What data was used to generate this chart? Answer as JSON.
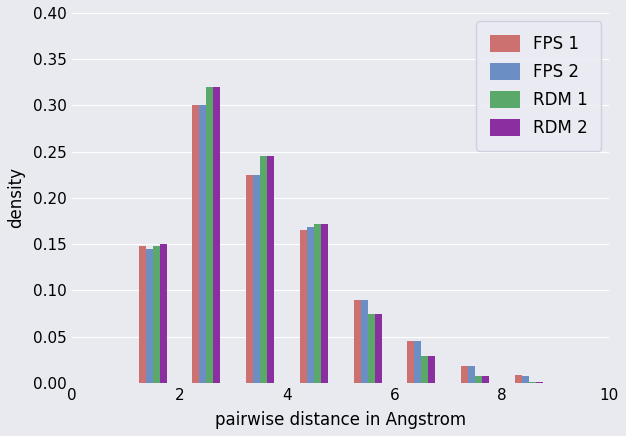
{
  "title": "",
  "xlabel": "pairwise distance in Angstrom",
  "ylabel": "density",
  "xlim": [
    0,
    10
  ],
  "ylim": [
    0,
    0.4
  ],
  "yticks": [
    0.0,
    0.05,
    0.1,
    0.15,
    0.2,
    0.25,
    0.3,
    0.35,
    0.4
  ],
  "xticks": [
    0,
    2,
    4,
    6,
    8,
    10
  ],
  "series": {
    "FPS 1": {
      "color": "#cd7070",
      "centers": [
        1.5,
        2.5,
        3.5,
        4.5,
        5.5,
        6.5,
        7.5,
        8.5
      ],
      "values": [
        0.148,
        0.3,
        0.225,
        0.165,
        0.09,
        0.045,
        0.018,
        0.008
      ]
    },
    "FPS 2": {
      "color": "#6b8ec4",
      "centers": [
        1.5,
        2.5,
        3.5,
        4.5,
        5.5,
        6.5,
        7.5,
        8.5
      ],
      "values": [
        0.145,
        0.3,
        0.225,
        0.168,
        0.09,
        0.045,
        0.018,
        0.007
      ]
    },
    "RDM 1": {
      "color": "#5aa86a",
      "centers": [
        1.5,
        2.5,
        3.5,
        4.5,
        5.5,
        6.5,
        7.5,
        8.5
      ],
      "values": [
        0.148,
        0.32,
        0.245,
        0.172,
        0.075,
        0.029,
        0.007,
        0.001
      ]
    },
    "RDM 2": {
      "color": "#8b2fa0",
      "centers": [
        1.5,
        2.5,
        3.5,
        4.5,
        5.5,
        6.5,
        7.5,
        8.5
      ],
      "values": [
        0.15,
        0.32,
        0.245,
        0.172,
        0.075,
        0.029,
        0.007,
        0.001
      ]
    }
  },
  "bar_width": 0.13,
  "bg_color": "#e8eaf0",
  "legend_bg": "#ebebf4",
  "grid_color": "#ffffff",
  "legend_labels": [
    "FPS 1",
    "FPS 2",
    "RDM 1",
    "RDM 2"
  ],
  "figsize": [
    6.26,
    4.36
  ],
  "dpi": 100
}
